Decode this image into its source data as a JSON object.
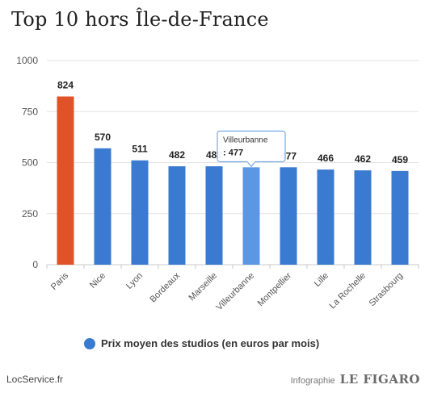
{
  "title": "Top 10 hors Île-de-France",
  "source": "LocService.fr",
  "credit_label": "Infographie",
  "credit_brand": "LE FIGARO",
  "chart_data": {
    "type": "bar",
    "title": "Top 10 hors Île-de-France",
    "categories": [
      "Paris",
      "Nice",
      "Lyon",
      "Bordeaux",
      "Marseille",
      "Villeurbanne",
      "Montpellier",
      "Lille",
      "La Rochelle",
      "Strasbourg"
    ],
    "series": [
      {
        "name": "Prix moyen des studios (en euros par mois)",
        "values": [
          824,
          570,
          511,
          482,
          482,
          477,
          477,
          466,
          462,
          459
        ]
      }
    ],
    "ylim": [
      0,
      1000
    ],
    "yticks": [
      0,
      250,
      500,
      750,
      1000
    ],
    "grid": true,
    "legend": "bottom",
    "colors": {
      "default": "#3a7ad1",
      "highlight": "#e15228",
      "hover": "#5b97e3"
    },
    "highlight_index": 0,
    "hover_index": 5,
    "tooltip": {
      "category": "Villeurbanne",
      "value": "477"
    }
  }
}
